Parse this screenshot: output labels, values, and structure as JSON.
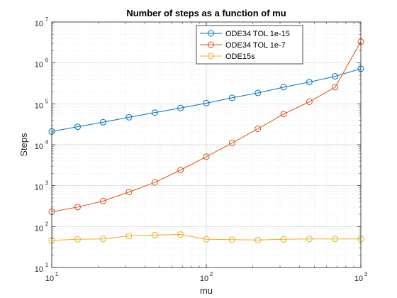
{
  "chart_data": {
    "type": "line",
    "title": "Number of steps as a function of mu",
    "xlabel": "mu",
    "ylabel": "Steps",
    "xscale": "log",
    "yscale": "log",
    "xlim": [
      10,
      1000
    ],
    "ylim": [
      10,
      10000000
    ],
    "x_ticks": [
      {
        "base": "10",
        "exp": "1",
        "value": 10
      },
      {
        "base": "10",
        "exp": "2",
        "value": 100
      },
      {
        "base": "10",
        "exp": "3",
        "value": 1000
      }
    ],
    "y_ticks": [
      {
        "base": "10",
        "exp": "1",
        "value": 10
      },
      {
        "base": "10",
        "exp": "2",
        "value": 100
      },
      {
        "base": "10",
        "exp": "3",
        "value": 1000
      },
      {
        "base": "10",
        "exp": "4",
        "value": 10000
      },
      {
        "base": "10",
        "exp": "5",
        "value": 100000
      },
      {
        "base": "10",
        "exp": "6",
        "value": 1000000
      },
      {
        "base": "10",
        "exp": "7",
        "value": 10000000
      }
    ],
    "grid": true,
    "minor_grid": true,
    "legend_position": "top-right",
    "x": [
      10,
      14.7,
      21.5,
      31.6,
      46.4,
      68.1,
      100,
      146.8,
      215.4,
      316.2,
      464.2,
      681.3,
      1000
    ],
    "series": [
      {
        "name": "ODE34 TOL 1e-15",
        "color": "#0072BD",
        "values": [
          21000,
          27500,
          35500,
          47000,
          61000,
          79000,
          104000,
          140000,
          185000,
          255000,
          340000,
          470000,
          720000
        ]
      },
      {
        "name": "ODE34 TOL 1e-7",
        "color": "#D95319",
        "values": [
          230,
          300,
          420,
          700,
          1200,
          2400,
          5100,
          11000,
          24500,
          56000,
          112000,
          255000,
          3300000
        ]
      },
      {
        "name": "ODE15s",
        "color": "#EDB120",
        "values": [
          46,
          49,
          50,
          59,
          62,
          64,
          49,
          48,
          47,
          49,
          50,
          50,
          50
        ]
      }
    ]
  }
}
